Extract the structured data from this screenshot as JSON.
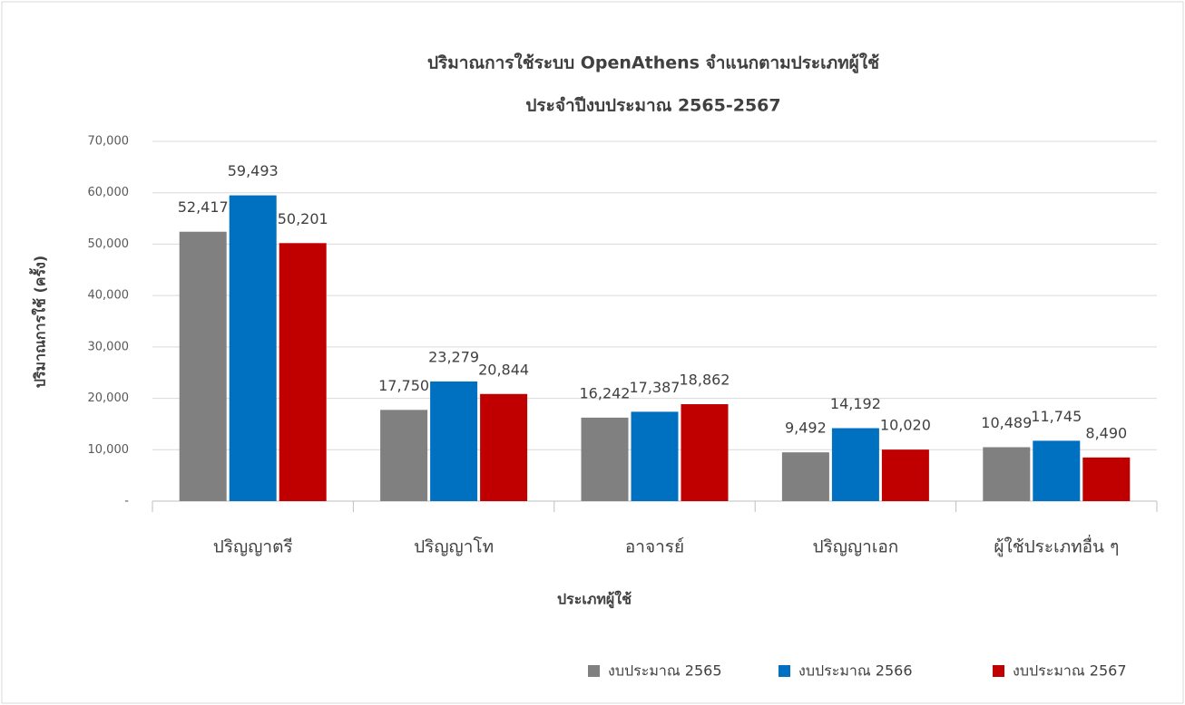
{
  "chart_data": {
    "type": "bar",
    "title": "ปริมาณการใช้ระบบ OpenAthens จำแนกตามประเภทผู้ใช้",
    "subtitle": "ประจำปีงบประมาณ 2565-2567",
    "x_label": "ประเภทผู้ใช้",
    "y_label": "ปริมาณการใช้ (ครั้ง)",
    "categories": [
      "ปริญญาตรี",
      "ปริญญาโท",
      "อาจารย์",
      "ปริญญาเอก",
      "ผู้ใช้ประเภทอื่น ๆ"
    ],
    "series": [
      {
        "name": "งบประมาณ 2565",
        "color": "#808080",
        "values": [
          52417,
          17750,
          16242,
          9492,
          10489
        ],
        "value_labels": [
          "52,417",
          "17,750",
          "16,242",
          "9,492",
          "10,489"
        ]
      },
      {
        "name": "งบประมาณ 2566",
        "color": "#0070c0",
        "values": [
          59493,
          23279,
          17387,
          14192,
          11745
        ],
        "value_labels": [
          "59,493",
          "23,279",
          "17,387",
          "14,192",
          "11,745"
        ]
      },
      {
        "name": "งบประมาณ 2567",
        "color": "#c00000",
        "values": [
          50201,
          20844,
          18862,
          10020,
          8490
        ],
        "value_labels": [
          "50,201",
          "20,844",
          "18,862",
          "10,020",
          "8,490"
        ]
      }
    ],
    "ylim": [
      0,
      70000
    ],
    "yticks": [
      {
        "value": 0,
        "label": "-"
      },
      {
        "value": 10000,
        "label": "10,000"
      },
      {
        "value": 20000,
        "label": "20,000"
      },
      {
        "value": 30000,
        "label": "30,000"
      },
      {
        "value": 40000,
        "label": "40,000"
      },
      {
        "value": 50000,
        "label": "50,000"
      },
      {
        "value": 60000,
        "label": "60,000"
      },
      {
        "value": 70000,
        "label": "70,000"
      }
    ],
    "grid": true,
    "legend": "bottom-right"
  }
}
